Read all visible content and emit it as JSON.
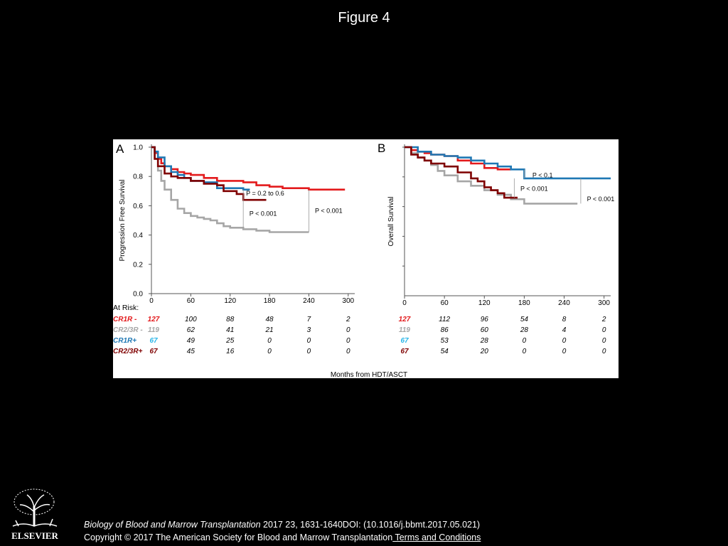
{
  "slide": {
    "title": "Figure 4",
    "citation_journal": "Biology of Blood and Marrow Transplantation",
    "citation_ref": " 2017 23, 1631-1640DOI: (10.1016/j.bbmt.2017.05.021)",
    "copyright": "Copyright © 2017 The American Society for Blood and Marrow Transplantation",
    "terms_link": " Terms and Conditions",
    "logo_text": "ELSEVIER"
  },
  "colors": {
    "CR1R-": "#e31a1c",
    "CR2/3R-": "#a6a6a6",
    "CR1R+": "#1f78b4",
    "CR2/3R+": "#7f0000",
    "at_risk_label_CR1R+": "#1f78b4",
    "at_risk_count_CR1R+": "#29b6e8"
  },
  "at_risk": {
    "header": "At Risk:",
    "labels": [
      "CR1R -",
      "CR2/3R -",
      "CR1R+",
      "CR2/3R+"
    ],
    "initial": [
      "127",
      "119",
      "67",
      "67"
    ],
    "panelA": [
      [
        "100",
        "88",
        "48",
        "7",
        "2"
      ],
      [
        "62",
        "41",
        "21",
        "3",
        "0"
      ],
      [
        "49",
        "25",
        "0",
        "0",
        "0"
      ],
      [
        "45",
        "16",
        "0",
        "0",
        "0"
      ]
    ],
    "panelB": [
      [
        "112",
        "96",
        "54",
        "8",
        "2"
      ],
      [
        "86",
        "60",
        "28",
        "4",
        "0"
      ],
      [
        "53",
        "28",
        "0",
        "0",
        "0"
      ],
      [
        "54",
        "20",
        "0",
        "0",
        "0"
      ]
    ]
  },
  "chart_data": [
    {
      "type": "line",
      "panel_label": "A",
      "title": "",
      "xlabel": "Months from HDT/ASCT",
      "ylabel": "Progression Free Survival",
      "xlim": [
        0,
        310
      ],
      "ylim": [
        0,
        1.0
      ],
      "xticks": [
        "0",
        "60",
        "120",
        "180",
        "240",
        "300"
      ],
      "yticks": [
        "0.0",
        "0.2",
        "0.4",
        "0.6",
        "0.8",
        "1.0"
      ],
      "series": [
        {
          "key": "CR1R-",
          "x": [
            0,
            5,
            10,
            15,
            20,
            30,
            40,
            50,
            60,
            80,
            100,
            120,
            140,
            160,
            180,
            200,
            220,
            240,
            260,
            280,
            295
          ],
          "y": [
            1.0,
            0.96,
            0.92,
            0.89,
            0.87,
            0.85,
            0.83,
            0.82,
            0.81,
            0.79,
            0.77,
            0.77,
            0.76,
            0.74,
            0.73,
            0.72,
            0.72,
            0.71,
            0.71,
            0.71,
            0.71
          ]
        },
        {
          "key": "CR2/3R-",
          "x": [
            0,
            5,
            10,
            15,
            20,
            30,
            40,
            50,
            60,
            70,
            80,
            90,
            100,
            110,
            120,
            140,
            160,
            180,
            200,
            220,
            240
          ],
          "y": [
            1.0,
            0.92,
            0.84,
            0.77,
            0.71,
            0.64,
            0.58,
            0.55,
            0.53,
            0.52,
            0.51,
            0.5,
            0.48,
            0.46,
            0.45,
            0.44,
            0.43,
            0.42,
            0.42,
            0.42,
            0.42
          ]
        },
        {
          "key": "CR1R+",
          "x": [
            0,
            5,
            10,
            20,
            30,
            40,
            50,
            60,
            80,
            100,
            120,
            140,
            150
          ],
          "y": [
            1.0,
            0.97,
            0.93,
            0.87,
            0.83,
            0.81,
            0.79,
            0.77,
            0.76,
            0.72,
            0.72,
            0.71,
            0.71
          ]
        },
        {
          "key": "CR2/3R+",
          "x": [
            0,
            5,
            10,
            20,
            30,
            40,
            50,
            60,
            80,
            100,
            110,
            120,
            130,
            140,
            150,
            165,
            175
          ],
          "y": [
            1.0,
            0.92,
            0.87,
            0.82,
            0.8,
            0.79,
            0.79,
            0.77,
            0.75,
            0.74,
            0.7,
            0.7,
            0.68,
            0.64,
            0.64,
            0.64,
            0.64
          ]
        }
      ],
      "annotations": [
        {
          "text": "P = 0.2 to 0.6",
          "x": 140,
          "y": 0.685
        },
        {
          "text": "P < 0.001",
          "x": 145,
          "y": 0.545
        },
        {
          "text": "P < 0.001",
          "x": 245,
          "y": 0.565
        }
      ]
    },
    {
      "type": "line",
      "panel_label": "B",
      "title": "",
      "xlabel": "Months from HDT/ASCT",
      "ylabel": "Overall Survival",
      "xlim": [
        0,
        310
      ],
      "ylim": [
        0,
        1.0
      ],
      "xticks": [
        "0",
        "60",
        "120",
        "180",
        "240",
        "300"
      ],
      "yticks": [],
      "series": [
        {
          "key": "CR1R-",
          "x": [
            0,
            10,
            20,
            30,
            40,
            60,
            80,
            100,
            120,
            130,
            140,
            160
          ],
          "y": [
            1.0,
            0.98,
            0.97,
            0.96,
            0.95,
            0.94,
            0.91,
            0.89,
            0.86,
            0.86,
            0.85,
            0.85
          ]
        },
        {
          "key": "CR2/3R-",
          "x": [
            0,
            10,
            20,
            30,
            40,
            50,
            60,
            80,
            100,
            120,
            140,
            160,
            180,
            200,
            220,
            240,
            260
          ],
          "y": [
            1.0,
            0.96,
            0.93,
            0.91,
            0.88,
            0.84,
            0.81,
            0.77,
            0.74,
            0.71,
            0.68,
            0.65,
            0.62,
            0.62,
            0.62,
            0.62,
            0.62
          ]
        },
        {
          "key": "CR1R+",
          "x": [
            0,
            20,
            40,
            60,
            80,
            100,
            120,
            140,
            160,
            170,
            180,
            190,
            200,
            220,
            250,
            280,
            310
          ],
          "y": [
            1.0,
            0.97,
            0.95,
            0.94,
            0.93,
            0.91,
            0.89,
            0.87,
            0.85,
            0.85,
            0.79,
            0.79,
            0.79,
            0.79,
            0.79,
            0.79,
            0.79
          ]
        },
        {
          "key": "CR2/3R+",
          "x": [
            0,
            10,
            20,
            30,
            40,
            60,
            80,
            100,
            110,
            120,
            130,
            140,
            150,
            160,
            170
          ],
          "y": [
            1.0,
            0.95,
            0.93,
            0.91,
            0.89,
            0.87,
            0.83,
            0.79,
            0.77,
            0.73,
            0.71,
            0.69,
            0.66,
            0.66,
            0.66
          ]
        }
      ],
      "annotations": [
        {
          "text": "P < 0.1",
          "x": 188,
          "y": 0.81
        },
        {
          "text": "P < 0.001",
          "x": 170,
          "y": 0.72
        },
        {
          "text": "P < 0.001",
          "x": 270,
          "y": 0.65
        }
      ]
    }
  ]
}
